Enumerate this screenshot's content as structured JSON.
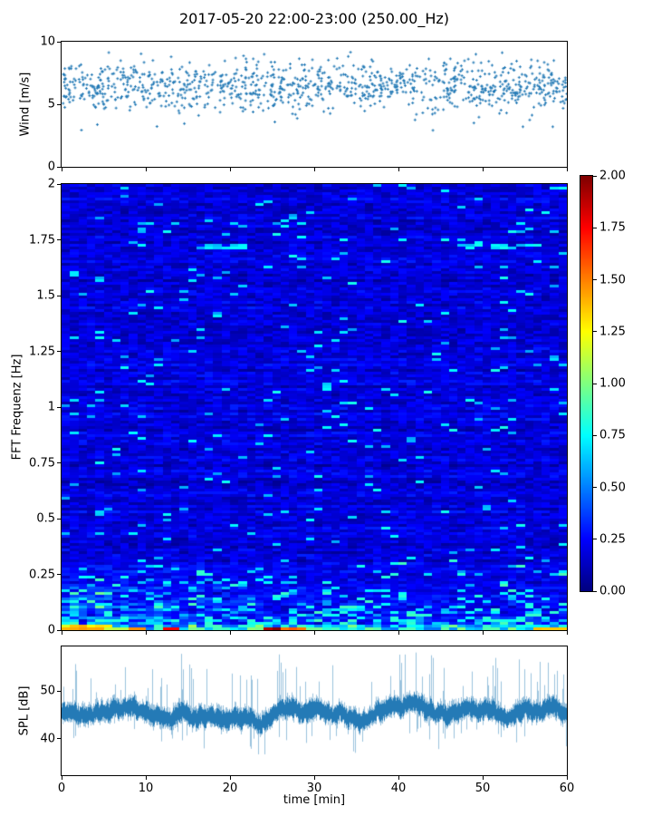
{
  "title": "2017-05-20 22:00-23:00 (250.00_Hz)",
  "colors": {
    "series_blue": "#1f77b4",
    "axis": "#000000",
    "background": "#ffffff"
  },
  "xaxis": {
    "label": "time [min]",
    "ticks": [
      0,
      10,
      20,
      30,
      40,
      50,
      60
    ],
    "lim": [
      0,
      60
    ]
  },
  "chart_data": [
    {
      "id": "wind",
      "type": "scatter",
      "ylabel": "Wind [m/s]",
      "ylim": [
        0,
        10
      ],
      "yticks": [
        0,
        5,
        10
      ],
      "marker": "plus",
      "color": "#1f77b4",
      "points_estimate": {
        "count": 1100,
        "mean": 6.45,
        "std": 1.0,
        "min": 2.9,
        "max": 9.6
      }
    },
    {
      "id": "fft-spectrogram",
      "type": "heatmap",
      "ylabel": "FFT Frequenz [Hz]",
      "ylim": [
        0,
        2
      ],
      "yticks": [
        0,
        0.25,
        0.5,
        0.75,
        1,
        1.25,
        1.5,
        1.75,
        2
      ],
      "colormap": "jet",
      "vmin": 0.0,
      "vmax": 2.0,
      "colorbar_tick_labels": [
        "2.00",
        "1.75",
        "1.50",
        "1.25",
        "1.00",
        "0.75",
        "0.50",
        "0.25",
        "0.00"
      ],
      "grid": {
        "cols": 60,
        "rows": 164
      },
      "background_level": {
        "typical_min": 0.05,
        "typical_max": 0.45
      },
      "features": {
        "high_freq_streaks": [
          {
            "freq_hz": 1.72,
            "t0_min": 17,
            "t1_min": 22,
            "value": 0.7
          },
          {
            "freq_hz": 1.72,
            "t0_min": 48,
            "t1_min": 57,
            "value": 0.7
          }
        ],
        "low_freq_band_max_hz": 0.32,
        "bottom_row_segments": [
          {
            "t0_min": 0,
            "t1_min": 5,
            "value": 1.45
          },
          {
            "t0_min": 5,
            "t1_min": 8,
            "value": 1.1
          },
          {
            "t0_min": 8,
            "t1_min": 10,
            "value": 1.5
          },
          {
            "t0_min": 12.5,
            "t1_min": 14,
            "value": 1.7
          },
          {
            "t0_min": 24,
            "t1_min": 26.5,
            "value": 1.95
          },
          {
            "t0_min": 26.5,
            "t1_min": 29,
            "value": 1.55
          },
          {
            "t0_min": 56,
            "t1_min": 60,
            "value": 1.35
          }
        ]
      }
    },
    {
      "id": "spl",
      "type": "line",
      "ylabel": "SPL [dB]",
      "xlabel": "time [min]",
      "ylim": [
        32.45,
        59.25
      ],
      "yticks": [
        40,
        50
      ],
      "color": "#1f77b4",
      "signal_estimate": {
        "mean_db": 45,
        "band_db": [
          42,
          48
        ],
        "spike_max_db": 57.5,
        "spike_min_db": 37.5
      }
    }
  ]
}
